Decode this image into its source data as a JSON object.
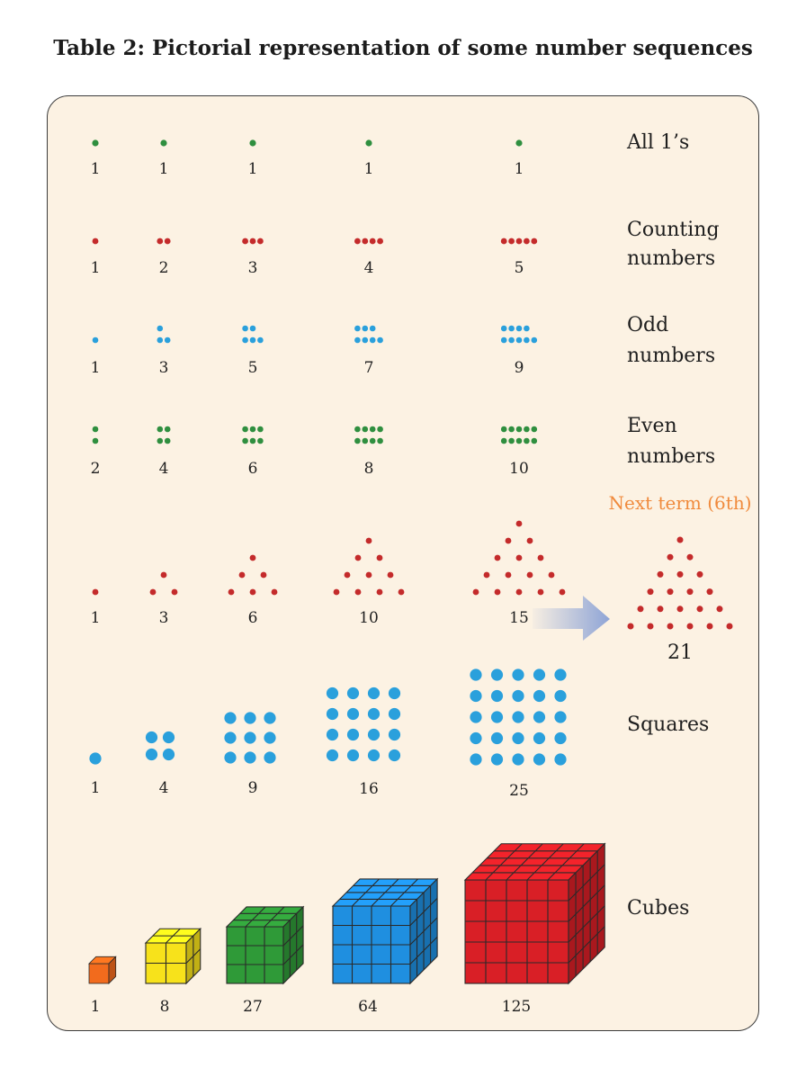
{
  "title": "Table 2: Pictorial representation of some number sequences",
  "colors": {
    "green": "#2f8f3f",
    "red": "#c42b2b",
    "blue": "#2aa0dc",
    "orange_text": "#f08a3c",
    "arrow": "#8ea4d6",
    "panel_bg": "#fcf2e3"
  },
  "rows": [
    {
      "key": "ones",
      "label_lines": [
        "All 1’s"
      ],
      "terms": [
        1,
        1,
        1,
        1,
        1
      ],
      "labels": [
        "1",
        "1",
        "1",
        "1",
        "1"
      ]
    },
    {
      "key": "counting",
      "label_lines": [
        "Counting",
        "numbers"
      ],
      "terms": [
        1,
        2,
        3,
        4,
        5
      ],
      "labels": [
        "1",
        "2",
        "3",
        "4",
        "5"
      ]
    },
    {
      "key": "odd",
      "label_lines": [
        "Odd",
        "numbers"
      ],
      "terms": [
        1,
        3,
        5,
        7,
        9
      ],
      "labels": [
        "1",
        "3",
        "5",
        "7",
        "9"
      ]
    },
    {
      "key": "even",
      "label_lines": [
        "Even",
        "numbers"
      ],
      "terms": [
        2,
        4,
        6,
        8,
        10
      ],
      "labels": [
        "2",
        "4",
        "6",
        "8",
        "10"
      ]
    },
    {
      "key": "triangular",
      "label_lines": [],
      "terms": [
        1,
        3,
        6,
        10,
        15
      ],
      "labels": [
        "1",
        "3",
        "6",
        "10",
        "15"
      ],
      "next_term": {
        "caption": "Next term (6th)",
        "value": 21,
        "label": "21"
      }
    },
    {
      "key": "squares",
      "label_lines": [
        "Squares"
      ],
      "terms": [
        1,
        4,
        9,
        16,
        25
      ],
      "labels": [
        "1",
        "4",
        "9",
        "16",
        "25"
      ]
    },
    {
      "key": "cubes",
      "label_lines": [
        "Cubes"
      ],
      "terms": [
        1,
        8,
        27,
        64,
        125
      ],
      "labels": [
        "1",
        "8",
        "27",
        "64",
        "125"
      ],
      "cube_colors": [
        "#f26b1d",
        "#f7e21b",
        "#2f9a38",
        "#1f8fe0",
        "#d91f26"
      ]
    }
  ]
}
